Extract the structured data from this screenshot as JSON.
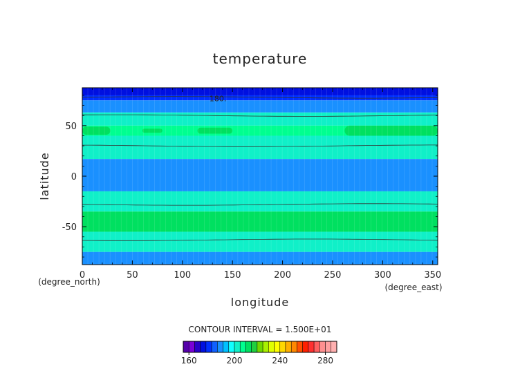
{
  "chart_data": {
    "type": "heatmap",
    "title": "temperature",
    "xlabel": "longitude",
    "ylabel": "latitude",
    "x_unit": "(degree_east)",
    "y_unit": "(degree_north)",
    "xlim": [
      0,
      355
    ],
    "ylim": [
      -87.5,
      87.5
    ],
    "x_ticks": [
      0,
      50,
      100,
      150,
      200,
      250,
      300,
      350
    ],
    "y_ticks": [
      -50,
      0,
      50
    ],
    "contour_interval_text": "CONTOUR INTERVAL = 1.500E+01",
    "contour_label": {
      "text": "180.",
      "lon": 127,
      "lat": 77
    },
    "bands": [
      {
        "lat_min": 80,
        "lat_max": 87.5,
        "value": 172
      },
      {
        "lat_min": 75,
        "lat_max": 80,
        "value": 178
      },
      {
        "lat_min": 63,
        "lat_max": 75,
        "value": 188
      },
      {
        "lat_min": 50,
        "lat_max": 63,
        "value": 200
      },
      {
        "lat_min": 40,
        "lat_max": 50,
        "value": 205
      },
      {
        "lat_min": 17,
        "lat_max": 40,
        "value": 200
      },
      {
        "lat_min": -15,
        "lat_max": 17,
        "value": 188
      },
      {
        "lat_min": -35,
        "lat_max": -15,
        "value": 200
      },
      {
        "lat_min": -55,
        "lat_max": -35,
        "value": 210
      },
      {
        "lat_min": -75,
        "lat_max": -55,
        "value": 200
      },
      {
        "lat_min": -87.5,
        "lat_max": -75,
        "value": 188
      }
    ],
    "patches": [
      {
        "lon_min": 0,
        "lon_max": 28,
        "lat_min": 41,
        "lat_max": 49,
        "value": 210
      },
      {
        "lon_min": 60,
        "lon_max": 80,
        "lat_min": 43,
        "lat_max": 47,
        "value": 210
      },
      {
        "lon_min": 115,
        "lon_max": 150,
        "lat_min": 42,
        "lat_max": 48,
        "value": 210
      },
      {
        "lon_min": 262,
        "lon_max": 355,
        "lat_min": 40,
        "lat_max": 50,
        "value": 210
      }
    ],
    "contour_lines": [
      78,
      60,
      30,
      -28,
      -63
    ],
    "colorbar": {
      "levels": [
        155,
        160,
        165,
        170,
        175,
        180,
        185,
        190,
        195,
        200,
        205,
        210,
        215,
        220,
        225,
        230,
        235,
        240,
        245,
        250,
        255,
        260,
        265,
        270,
        275,
        280,
        285,
        290
      ],
      "colors": [
        "#5500aa",
        "#7a00d6",
        "#2a00c8",
        "#0010e0",
        "#0030ff",
        "#1060ff",
        "#1a90ff",
        "#00c0ff",
        "#10ffff",
        "#10f0c8",
        "#00ff90",
        "#00e060",
        "#20d040",
        "#70d800",
        "#a8f000",
        "#e0ff00",
        "#ffff00",
        "#ffd800",
        "#ffb000",
        "#ff8800",
        "#ff5000",
        "#ff2000",
        "#ff3030",
        "#ff6060",
        "#ff9090",
        "#ffa0a0",
        "#ffb0b0"
      ],
      "tick_labels": [
        160,
        200,
        240,
        280
      ]
    },
    "grid": false,
    "legend": "bottom"
  }
}
